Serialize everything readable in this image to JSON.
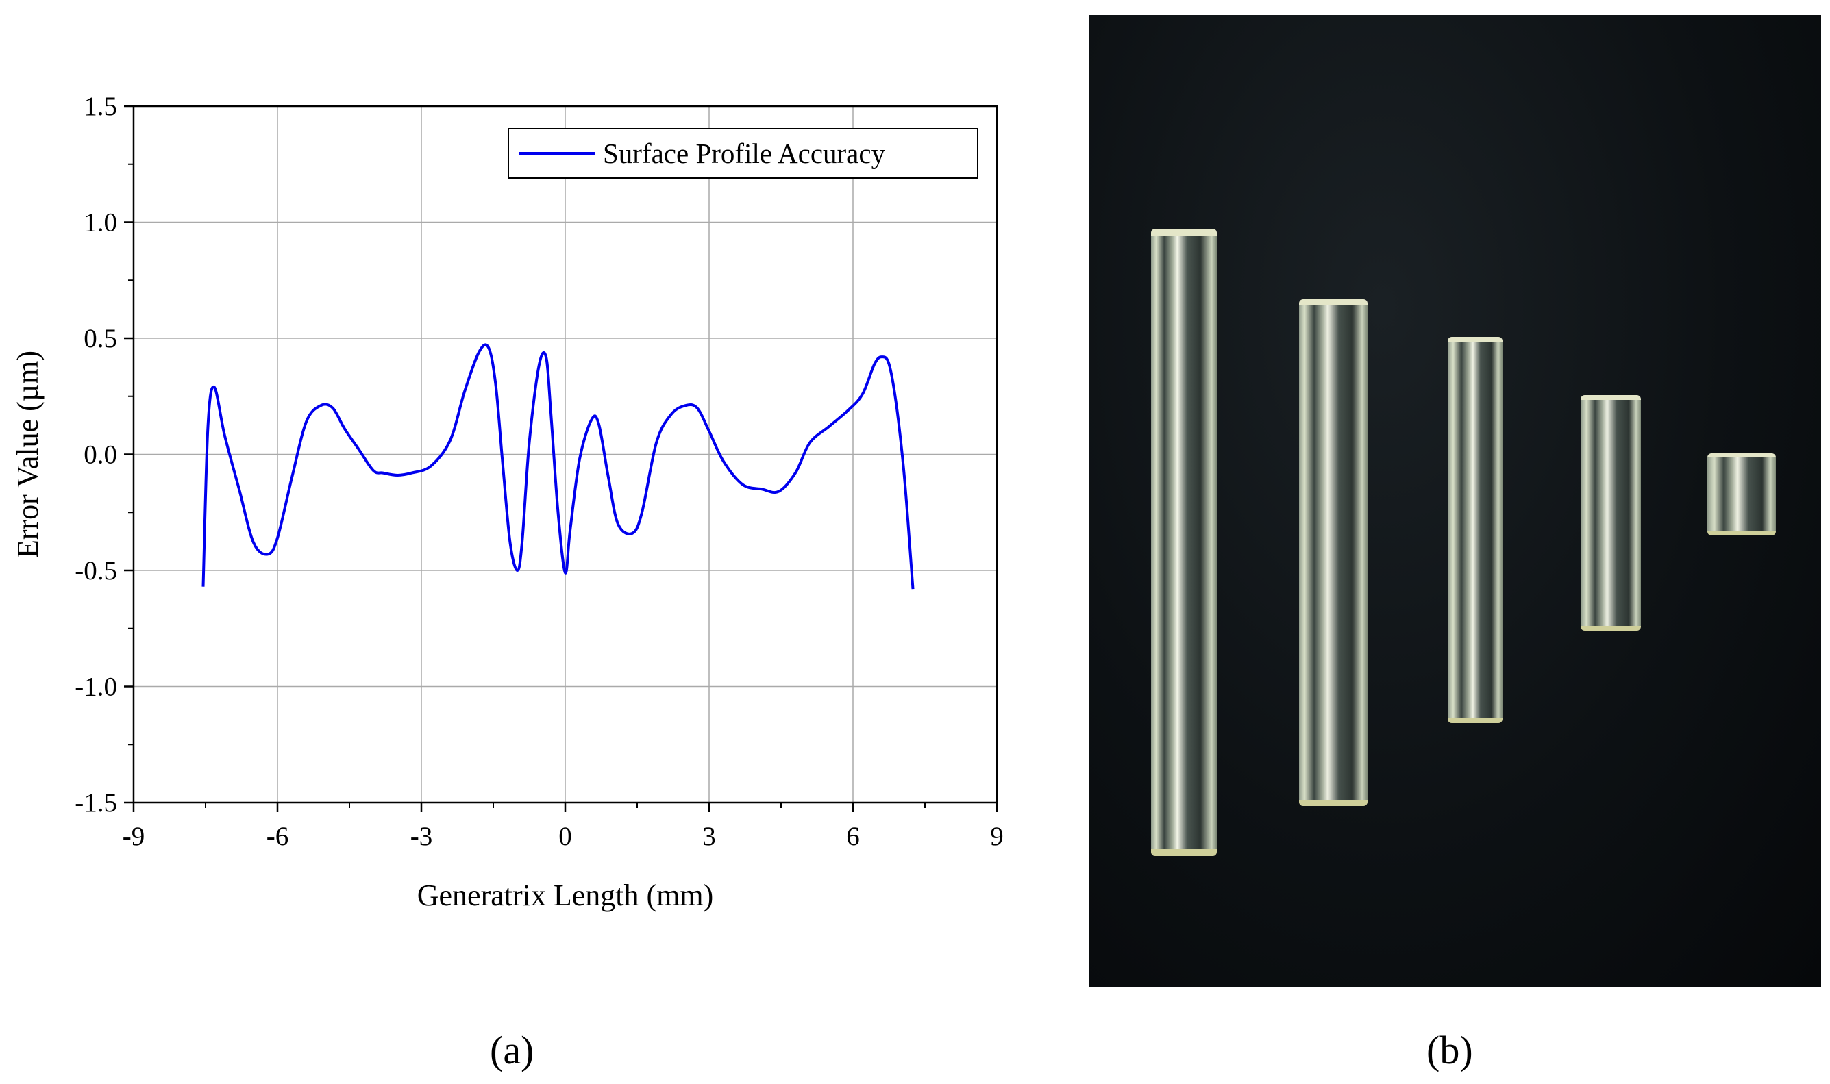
{
  "chart_data": {
    "type": "line",
    "xlabel": "Generatrix Length (mm)",
    "ylabel": "Error Value (µm)",
    "xlim": [
      -9,
      9
    ],
    "ylim": [
      -1.5,
      1.5
    ],
    "xticks": [
      -9,
      -6,
      -3,
      0,
      3,
      6,
      9
    ],
    "yticks": [
      -1.5,
      -1.0,
      -0.5,
      0.0,
      0.5,
      1.0,
      1.5
    ],
    "xtick_labels": [
      "-9",
      "-6",
      "-3",
      "0",
      "3",
      "6",
      "9"
    ],
    "ytick_labels": [
      "-1.5",
      "-1.0",
      "-0.5",
      "0.0",
      "0.5",
      "1.0",
      "1.5"
    ],
    "grid": true,
    "legend_position": "top-right",
    "series": [
      {
        "name": "Surface Profile Accuracy",
        "color": "#0000ee",
        "x": [
          -7.55,
          -7.45,
          -7.32,
          -7.1,
          -6.8,
          -6.5,
          -6.2,
          -6.0,
          -5.7,
          -5.4,
          -5.1,
          -4.85,
          -4.6,
          -4.3,
          -4.0,
          -3.8,
          -3.5,
          -3.2,
          -2.8,
          -2.4,
          -2.1,
          -1.8,
          -1.6,
          -1.45,
          -1.3,
          -1.15,
          -1.0,
          -0.9,
          -0.75,
          -0.55,
          -0.4,
          -0.3,
          -0.15,
          0.0,
          0.1,
          0.3,
          0.55,
          0.7,
          0.9,
          1.1,
          1.4,
          1.6,
          1.9,
          2.2,
          2.5,
          2.75,
          3.0,
          3.3,
          3.7,
          4.1,
          4.45,
          4.8,
          5.1,
          5.5,
          5.9,
          6.2,
          6.45,
          6.6,
          6.75,
          6.9,
          7.05,
          7.15,
          7.25
        ],
        "y": [
          -0.57,
          0.12,
          0.29,
          0.08,
          -0.15,
          -0.38,
          -0.43,
          -0.36,
          -0.1,
          0.14,
          0.21,
          0.2,
          0.11,
          0.02,
          -0.07,
          -0.08,
          -0.09,
          -0.08,
          -0.05,
          0.06,
          0.27,
          0.44,
          0.46,
          0.3,
          -0.05,
          -0.38,
          -0.5,
          -0.38,
          0.05,
          0.38,
          0.42,
          0.18,
          -0.25,
          -0.51,
          -0.33,
          -0.02,
          0.15,
          0.13,
          -0.1,
          -0.3,
          -0.34,
          -0.25,
          0.05,
          0.17,
          0.21,
          0.2,
          0.1,
          -0.03,
          -0.13,
          -0.15,
          -0.16,
          -0.08,
          0.05,
          0.12,
          0.19,
          0.26,
          0.39,
          0.42,
          0.39,
          0.22,
          -0.05,
          -0.3,
          -0.58
        ]
      }
    ]
  },
  "panel_labels": {
    "a": "(a)",
    "b": "(b)"
  },
  "photo": {
    "rod_count": 5
  }
}
